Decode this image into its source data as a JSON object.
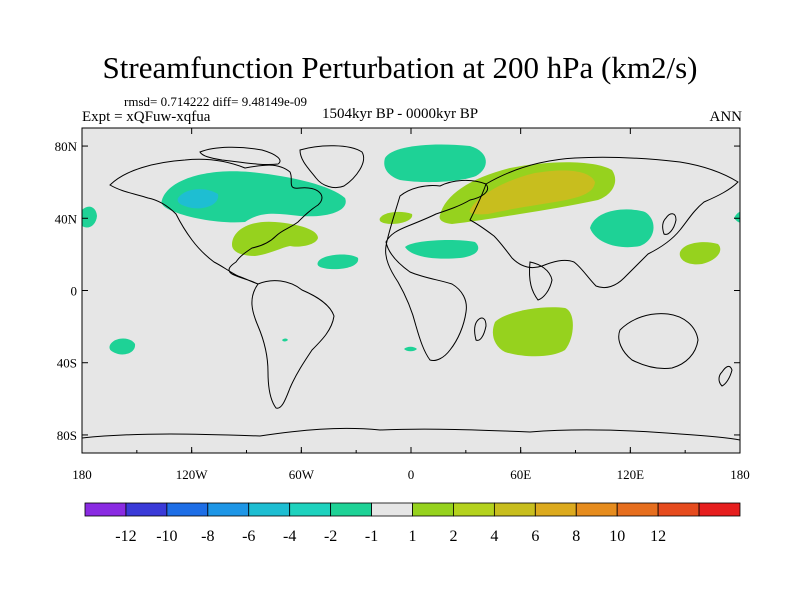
{
  "title": "Streamfunction Perturbation at 200 hPa (km2/s)",
  "stats": "rmsd= 0.714222 diff= 9.48149e-09",
  "experiment": "Expt = xQFuw-xqfua",
  "period": "1504kyr BP - 0000kyr BP",
  "season": "ANN",
  "lon_ticks": [
    "180",
    "120W",
    "60W",
    "0",
    "60E",
    "120E",
    "180"
  ],
  "lat_ticks": [
    "80N",
    "40N",
    "0",
    "40S",
    "80S"
  ],
  "colorbar": {
    "colors": [
      "#8a2be2",
      "#3a3ad8",
      "#1e6ee6",
      "#1e96e6",
      "#1ebed2",
      "#1ed2be",
      "#1ed296",
      "#e6e6e6",
      "#96d21e",
      "#b4d21e",
      "#c8be1e",
      "#dcaa1e",
      "#e68c1e",
      "#e66e1e",
      "#e64b1e",
      "#e61e1e"
    ],
    "labels": [
      "-12",
      "-10",
      "-8",
      "-6",
      "-4",
      "-2",
      "-1",
      "1",
      "2",
      "4",
      "6",
      "8",
      "10",
      "12"
    ]
  },
  "map_data": {
    "background_color": "#e6e6e6",
    "anomalies": [
      {
        "region": "North Atlantic",
        "lon": -90,
        "lat": 50,
        "value": -1,
        "color": "#1ed296"
      },
      {
        "region": "Hudson Bay",
        "lon": -100,
        "lat": 50,
        "value": -2,
        "color": "#1ebed2"
      },
      {
        "region": "North Pacific east",
        "lon": -175,
        "lat": 42,
        "value": -1,
        "color": "#1ed296"
      },
      {
        "region": "Arctic near Scandinavia",
        "lon": 18,
        "lat": 78,
        "value": -1,
        "color": "#1ed296"
      },
      {
        "region": "Mediterranean",
        "lon": 20,
        "lat": 30,
        "value": -1,
        "color": "#1ed296"
      },
      {
        "region": "Subtropical Atlantic",
        "lon": -33,
        "lat": 18,
        "value": -1,
        "color": "#1ed296"
      },
      {
        "region": "East Asia",
        "lon": 112,
        "lat": 35,
        "value": -1,
        "color": "#1ed296"
      },
      {
        "region": "North Pacific west",
        "lon": 178,
        "lat": 42,
        "value": -1,
        "color": "#1ed296"
      },
      {
        "region": "South Pacific",
        "lon": -152,
        "lat": -28,
        "value": -1,
        "color": "#1ed296"
      },
      {
        "region": "South Atlantic",
        "lon": 0,
        "lat": -29,
        "value": -1,
        "color": "#1ed296"
      },
      {
        "region": "Eastern Europe / Central Asia",
        "lon": 62,
        "lat": 48,
        "value": 4,
        "color": "#c8be1e"
      },
      {
        "region": "Gulf of Mexico",
        "lon": -77,
        "lat": 32,
        "value": 2,
        "color": "#96d21e"
      },
      {
        "region": "Western Europe",
        "lon": -5,
        "lat": 42,
        "value": 1,
        "color": "#96d21e"
      },
      {
        "region": "South Indian Ocean",
        "lon": 63,
        "lat": -27,
        "value": 2,
        "color": "#96d21e"
      },
      {
        "region": "Western Pacific",
        "lon": 160,
        "lat": 25,
        "value": 2,
        "color": "#96d21e"
      }
    ]
  }
}
